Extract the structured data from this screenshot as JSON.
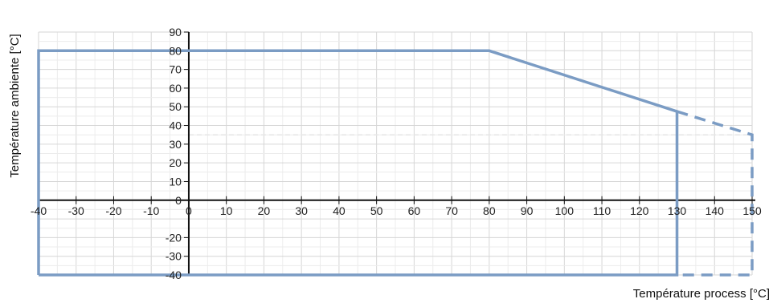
{
  "chart_data": {
    "type": "line",
    "title": "",
    "xlabel": "Température process [°C]",
    "ylabel": "Température ambiente  [°C]",
    "xlim": [
      -40,
      150
    ],
    "ylim": [
      -40,
      90
    ],
    "x_ticks": [
      -40,
      -30,
      -20,
      -10,
      0,
      10,
      20,
      30,
      40,
      50,
      60,
      70,
      80,
      90,
      100,
      110,
      120,
      130,
      140,
      150
    ],
    "y_ticks": [
      90,
      80,
      70,
      60,
      50,
      40,
      30,
      20,
      10,
      0,
      -20,
      -30,
      -40
    ],
    "grid": true,
    "series": [
      {
        "style": "solid",
        "color": "#7b9cc4",
        "points": [
          [
            -40,
            -40
          ],
          [
            -40,
            80
          ],
          [
            80,
            80
          ],
          [
            130,
            47.5
          ],
          [
            130,
            -40
          ],
          [
            -40,
            -40
          ]
        ]
      },
      {
        "style": "dashed",
        "color": "#7b9cc4",
        "points": [
          [
            130,
            47.5
          ],
          [
            150,
            35
          ],
          [
            150,
            -40
          ],
          [
            130,
            -40
          ]
        ]
      }
    ],
    "reference_lines": [
      {
        "axis": "x",
        "value": 130,
        "color": "#e6e6e6"
      },
      {
        "axis": "y",
        "value": 35,
        "color": "#e6e6e6"
      }
    ]
  }
}
